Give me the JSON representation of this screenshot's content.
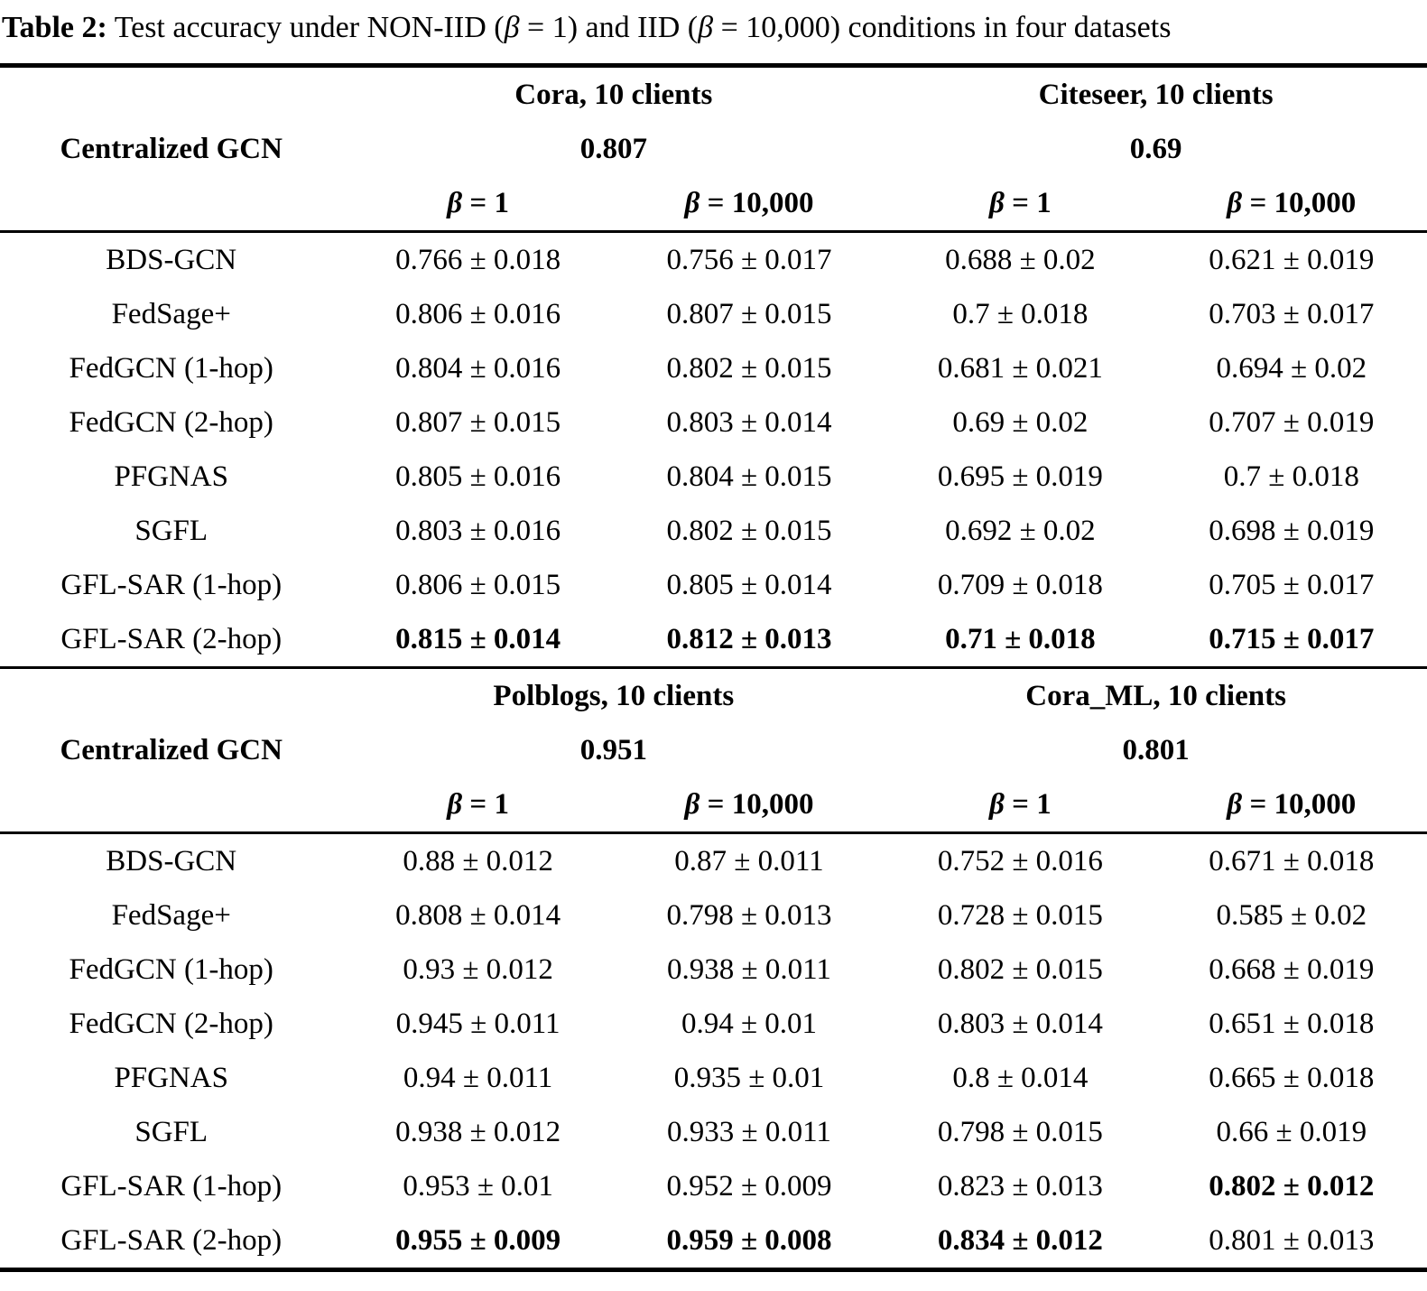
{
  "title": {
    "label": "Table 2:",
    "part1": "  Test accuracy under NON-IID (",
    "beta1": "β",
    "part2": " = 1) and IID (",
    "beta2": "β",
    "part3": " = 10,000) conditions in four datasets"
  },
  "sections": [
    {
      "centralized_label": "Centralized GCN",
      "datasets": [
        {
          "name": "Cora, 10 clients",
          "centralized": "0.807"
        },
        {
          "name": "Citeseer, 10 clients",
          "centralized": "0.69"
        }
      ],
      "beta_headers": [
        {
          "beta": "β",
          "rest": " = 1"
        },
        {
          "beta": "β",
          "rest": " = 10,000"
        },
        {
          "beta": "β",
          "rest": " = 1"
        },
        {
          "beta": "β",
          "rest": " = 10,000"
        }
      ],
      "rows": [
        {
          "method": "BDS-GCN",
          "values": [
            "0.766 ± 0.018",
            "0.756 ± 0.017",
            "0.688 ± 0.02",
            "0.621 ± 0.019"
          ]
        },
        {
          "method": "FedSage+",
          "values": [
            "0.806 ± 0.016",
            "0.807 ± 0.015",
            "0.7 ± 0.018",
            "0.703 ± 0.017"
          ]
        },
        {
          "method": "FedGCN (1-hop)",
          "values": [
            "0.804 ± 0.016",
            "0.802 ± 0.015",
            "0.681 ± 0.021",
            "0.694 ± 0.02"
          ]
        },
        {
          "method": "FedGCN (2-hop)",
          "values": [
            "0.807 ± 0.015",
            "0.803 ± 0.014",
            "0.69 ± 0.02",
            "0.707 ± 0.019"
          ]
        },
        {
          "method": "PFGNAS",
          "values": [
            "0.805 ± 0.016",
            "0.804 ± 0.015",
            "0.695 ± 0.019",
            "0.7 ± 0.018"
          ]
        },
        {
          "method": "SGFL",
          "values": [
            "0.803 ± 0.016",
            "0.802 ± 0.015",
            "0.692 ± 0.02",
            "0.698 ± 0.019"
          ]
        },
        {
          "method": "GFL-SAR (1-hop)",
          "values": [
            "0.806 ± 0.015",
            "0.805 ± 0.014",
            "0.709 ± 0.018",
            "0.705 ± 0.017"
          ]
        },
        {
          "method": "GFL-SAR (2-hop)",
          "values": [
            "0.815 ± 0.014",
            "0.812 ± 0.013",
            "0.71 ± 0.018",
            "0.715 ± 0.017"
          ]
        }
      ]
    },
    {
      "centralized_label": "Centralized GCN",
      "datasets": [
        {
          "name": "Polblogs, 10 clients",
          "centralized": "0.951"
        },
        {
          "name": "Cora_ML, 10 clients",
          "centralized": "0.801"
        }
      ],
      "beta_headers": [
        {
          "beta": "β",
          "rest": " = 1"
        },
        {
          "beta": "β",
          "rest": " = 10,000"
        },
        {
          "beta": "β",
          "rest": " = 1"
        },
        {
          "beta": "β",
          "rest": " = 10,000"
        }
      ],
      "rows": [
        {
          "method": "BDS-GCN",
          "values": [
            "0.88 ± 0.012",
            "0.87 ± 0.011",
            "0.752 ± 0.016",
            "0.671 ± 0.018"
          ]
        },
        {
          "method": "FedSage+",
          "values": [
            "0.808 ± 0.014",
            "0.798 ± 0.013",
            "0.728 ± 0.015",
            "0.585 ± 0.02"
          ]
        },
        {
          "method": "FedGCN (1-hop)",
          "values": [
            "0.93 ± 0.012",
            "0.938 ± 0.011",
            "0.802 ± 0.015",
            "0.668 ± 0.019"
          ]
        },
        {
          "method": "FedGCN (2-hop)",
          "values": [
            "0.945 ± 0.011",
            "0.94 ± 0.01",
            "0.803 ± 0.014",
            "0.651 ± 0.018"
          ]
        },
        {
          "method": "PFGNAS",
          "values": [
            "0.94 ± 0.011",
            "0.935 ± 0.01",
            "0.8 ± 0.014",
            "0.665 ± 0.018"
          ]
        },
        {
          "method": "SGFL",
          "values": [
            "0.938 ± 0.012",
            "0.933 ± 0.011",
            "0.798 ± 0.015",
            "0.66 ± 0.019"
          ]
        },
        {
          "method": "GFL-SAR (1-hop)",
          "values": [
            "0.953 ± 0.01",
            "0.952 ± 0.009",
            "0.823 ± 0.013",
            "0.802 ± 0.012"
          ]
        },
        {
          "method": "GFL-SAR (2-hop)",
          "values": [
            "0.955 ± 0.009",
            "0.959 ± 0.008",
            "0.834 ± 0.012",
            "0.801 ± 0.013"
          ]
        }
      ]
    }
  ],
  "chart_data": {
    "type": "table",
    "title": "Table 2: Test accuracy under NON-IID (β = 1) and IID (β = 10,000) conditions in four datasets",
    "centralized_gcn": {
      "Cora": 0.807,
      "Citeseer": 0.69,
      "Polblogs": 0.951,
      "Cora_ML": 0.801
    },
    "columns": [
      "Cora β=1",
      "Cora β=10,000",
      "Citeseer β=1",
      "Citeseer β=10,000",
      "Polblogs β=1",
      "Polblogs β=10,000",
      "Cora_ML β=1",
      "Cora_ML β=10,000"
    ],
    "methods": [
      "BDS-GCN",
      "FedSage+",
      "FedGCN (1-hop)",
      "FedGCN (2-hop)",
      "PFGNAS",
      "SGFL",
      "GFL-SAR (1-hop)",
      "GFL-SAR (2-hop)"
    ]
  }
}
